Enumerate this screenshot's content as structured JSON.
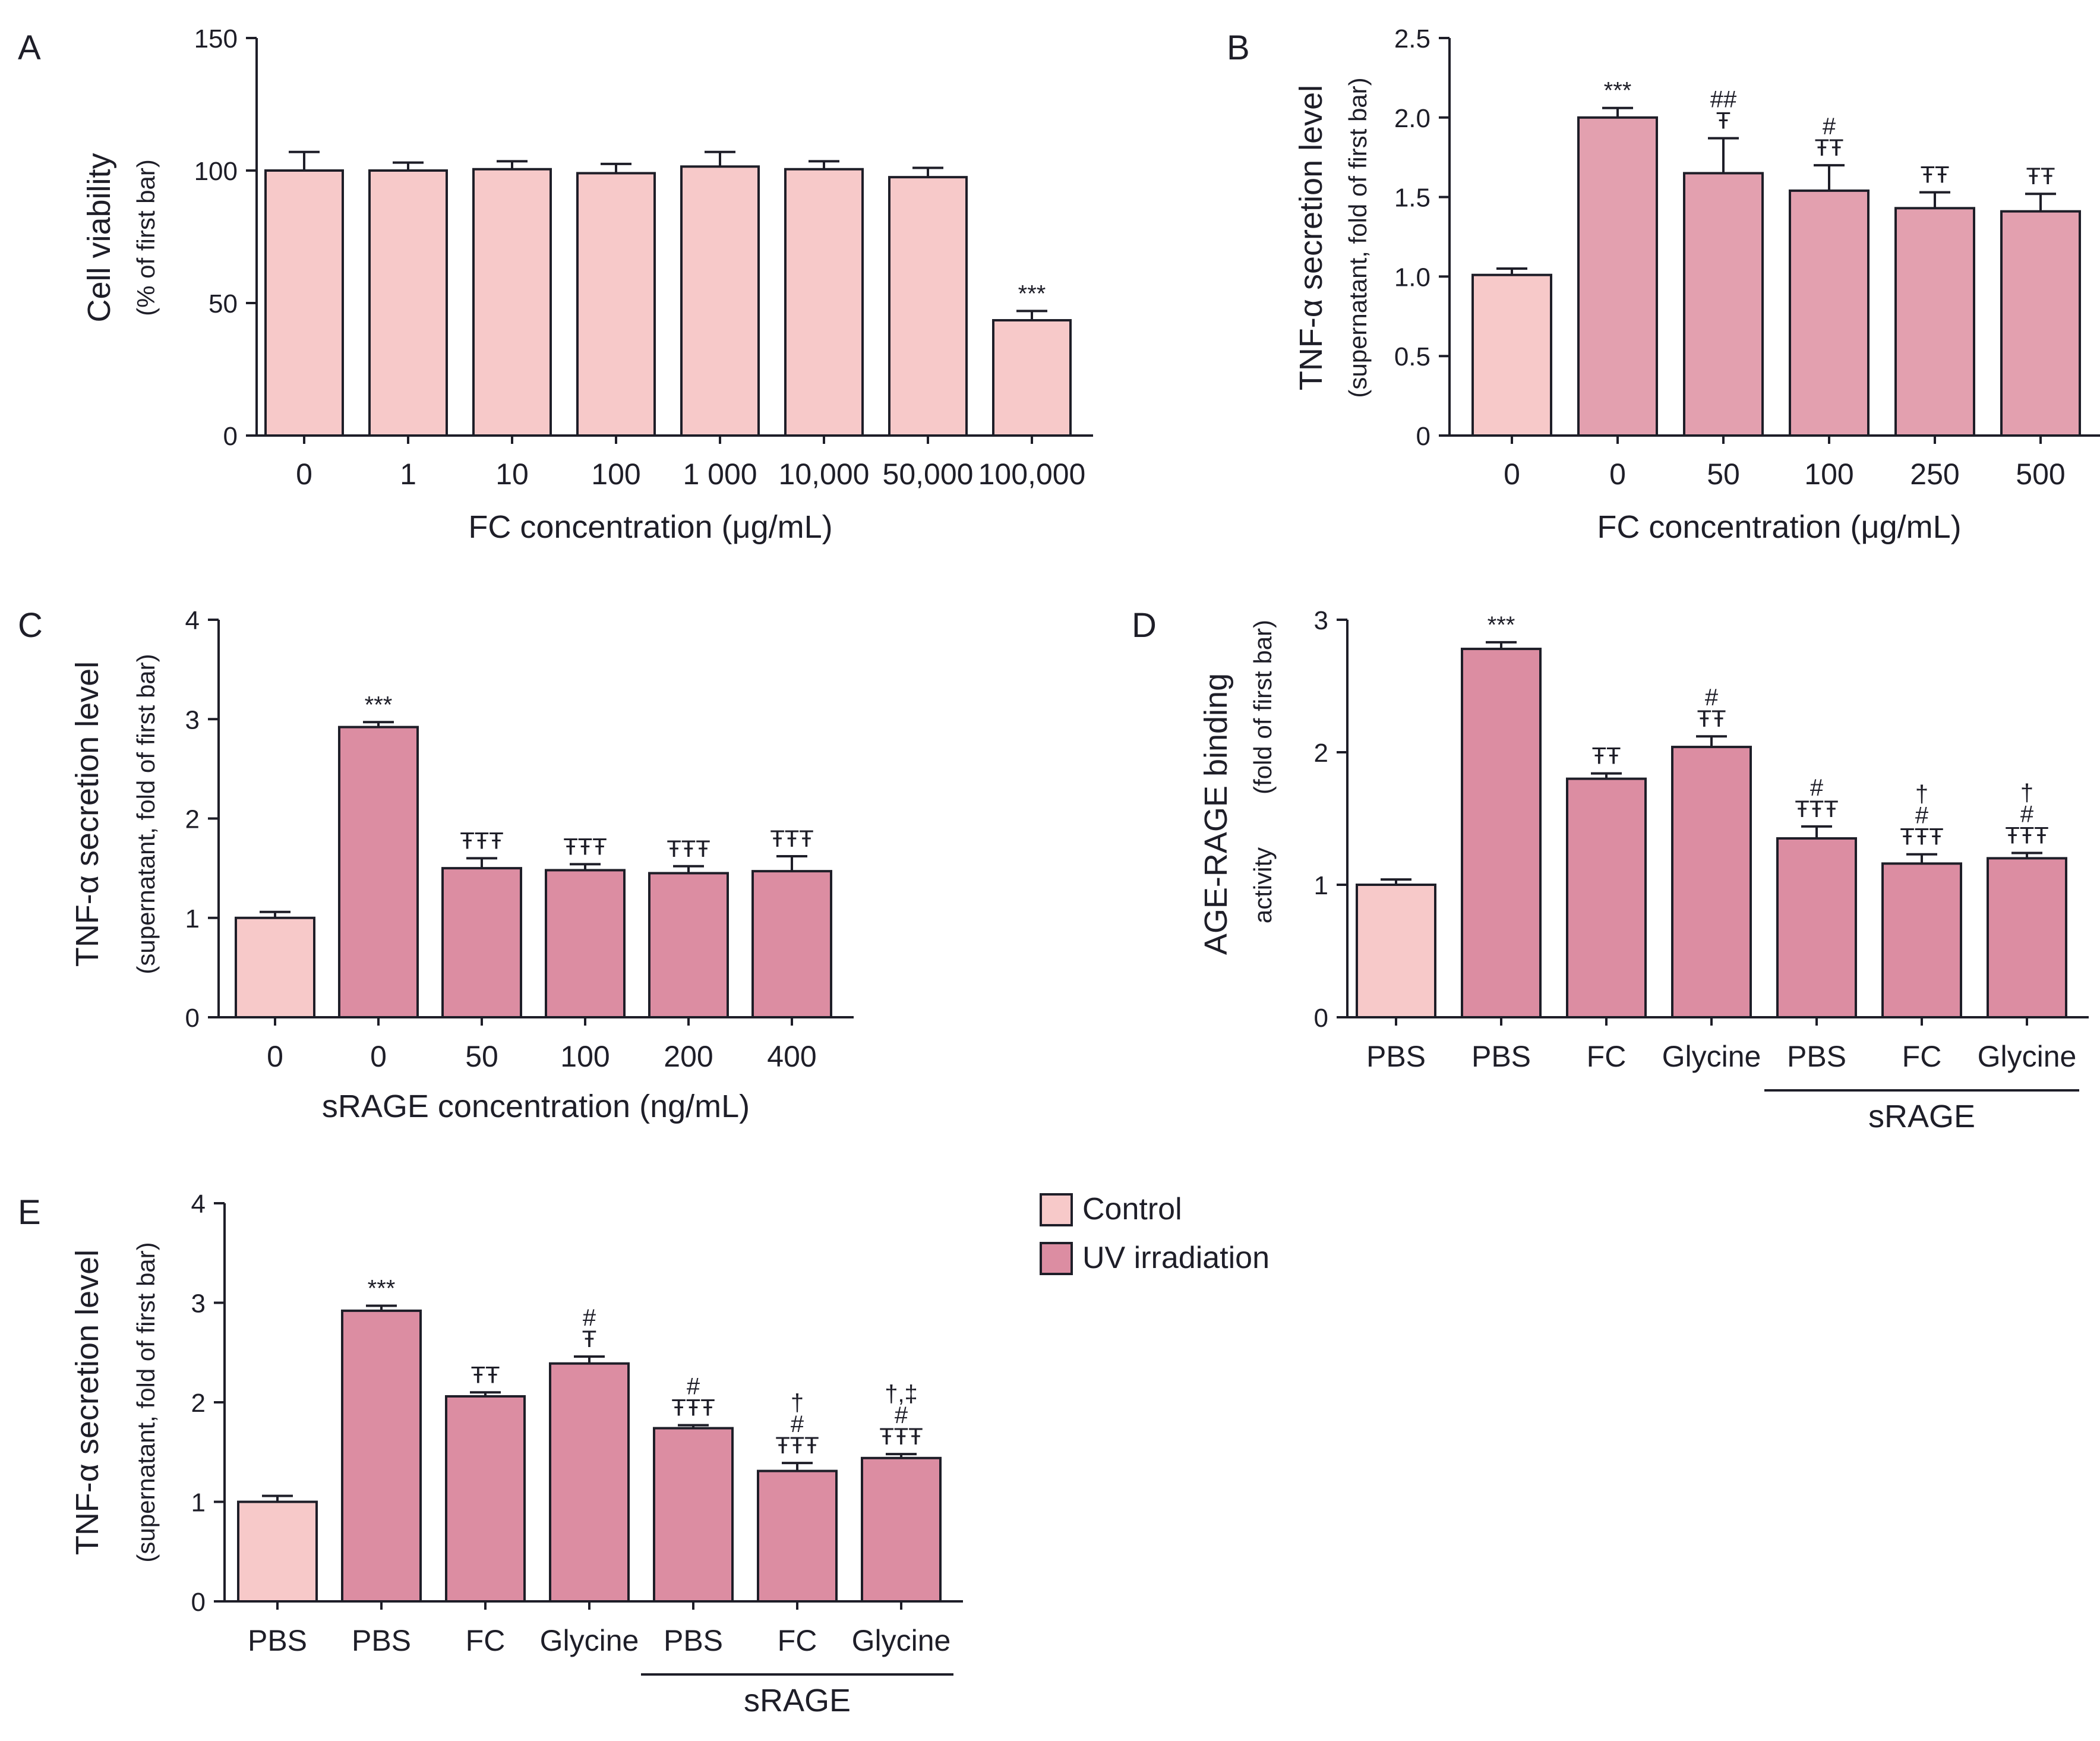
{
  "colors": {
    "control": "#F7C9C9",
    "uv": "#DC8DA2",
    "uv_b": "#E3A0AF",
    "stroke": "#1e1e28"
  },
  "legend": {
    "items": [
      {
        "label": "Control",
        "color": "#F7C9C9"
      },
      {
        "label": "UV irradiation",
        "color": "#DC8DA2"
      }
    ]
  },
  "chart_data": [
    {
      "panel": "A",
      "type": "bar",
      "ylabel": "Cell viability",
      "ylabel2": "(% of first bar)",
      "xlabel": "FC concentration (μg/mL)",
      "ylim": [
        0,
        150
      ],
      "ticks": [
        "0",
        "50",
        "100",
        "150"
      ],
      "categories": [
        "0",
        "1",
        "10",
        "100",
        "1 000",
        "10,000",
        "50,000",
        "100,000"
      ],
      "values": [
        100,
        100,
        100.5,
        99,
        101.5,
        100.5,
        97.5,
        43.5
      ],
      "errors": [
        7,
        3,
        3,
        3.5,
        5.5,
        3,
        3.5,
        3.5
      ],
      "groups": [
        "control",
        "control",
        "control",
        "control",
        "control",
        "control",
        "control",
        "control"
      ],
      "annotations": [
        "",
        "",
        "",
        "",
        "",
        "",
        "",
        "***"
      ],
      "bracket": null
    },
    {
      "panel": "B",
      "type": "bar",
      "ylabel": "TNF-α secretion level",
      "ylabel2": "(supernatant, fold of first bar)",
      "xlabel": "FC concentration (μg/mL)",
      "ylim": [
        0,
        2.5
      ],
      "ticks": [
        "0",
        "0.5",
        "1.0",
        "1.5",
        "2.0",
        "2.5"
      ],
      "categories": [
        "0",
        "0",
        "50",
        "100",
        "250",
        "500"
      ],
      "values": [
        1.01,
        2.0,
        1.65,
        1.54,
        1.43,
        1.41
      ],
      "errors": [
        0.04,
        0.06,
        0.22,
        0.16,
        0.1,
        0.11
      ],
      "groups": [
        "control",
        "uv_b",
        "uv_b",
        "uv_b",
        "uv_b",
        "uv_b"
      ],
      "annotations": [
        "",
        "***",
        "##\nŦ",
        "#\nŦŦ",
        "ŦŦ",
        "ŦŦ"
      ],
      "bracket": null
    },
    {
      "panel": "C",
      "type": "bar",
      "ylabel": "TNF-α secretion level",
      "ylabel2": "(supernatant, fold of first bar)",
      "xlabel": "sRAGE concentration (ng/mL)",
      "ylim": [
        0,
        4
      ],
      "ticks": [
        "0",
        "1",
        "2",
        "3",
        "4"
      ],
      "categories": [
        "0",
        "0",
        "50",
        "100",
        "200",
        "400"
      ],
      "values": [
        1.0,
        2.92,
        1.5,
        1.48,
        1.45,
        1.47
      ],
      "errors": [
        0.06,
        0.05,
        0.1,
        0.06,
        0.07,
        0.15
      ],
      "groups": [
        "control",
        "uv",
        "uv",
        "uv",
        "uv",
        "uv"
      ],
      "annotations": [
        "",
        "***",
        "ŦŦŦ",
        "ŦŦŦ",
        "ŦŦŦ",
        "ŦŦŦ"
      ],
      "bracket": null
    },
    {
      "panel": "D",
      "type": "bar",
      "ylabel": "AGE-RAGE binding",
      "ylabel2": "activity",
      "ylabel3": "(fold of first bar)",
      "xlabel": "",
      "ylim": [
        0,
        3
      ],
      "ticks": [
        "0",
        "1",
        "2",
        "3"
      ],
      "categories": [
        "PBS",
        "PBS",
        "FC",
        "Glycine",
        "PBS",
        "FC",
        "Glycine"
      ],
      "values": [
        1.0,
        2.78,
        1.8,
        2.04,
        1.35,
        1.16,
        1.2
      ],
      "errors": [
        0.04,
        0.05,
        0.04,
        0.08,
        0.09,
        0.07,
        0.04
      ],
      "groups": [
        "control",
        "uv",
        "uv",
        "uv",
        "uv",
        "uv",
        "uv"
      ],
      "annotations": [
        "",
        "***",
        "ŦŦ",
        "#\nŦŦ",
        "#\nŦŦŦ",
        "†\n#\nŦŦŦ",
        "†\n#\nŦŦŦ"
      ],
      "bracket": {
        "label": "sRAGE",
        "from": 4,
        "to": 6
      }
    },
    {
      "panel": "E",
      "type": "bar",
      "ylabel": "TNF-α secretion level",
      "ylabel2": "(supernatant, fold of first bar)",
      "xlabel": "",
      "ylim": [
        0,
        4
      ],
      "ticks": [
        "0",
        "1",
        "2",
        "3",
        "4"
      ],
      "categories": [
        "PBS",
        "PBS",
        "FC",
        "Glycine",
        "PBS",
        "FC",
        "Glycine"
      ],
      "values": [
        1.0,
        2.92,
        2.06,
        2.39,
        1.74,
        1.31,
        1.44
      ],
      "errors": [
        0.06,
        0.05,
        0.04,
        0.07,
        0.03,
        0.08,
        0.04
      ],
      "groups": [
        "control",
        "uv",
        "uv",
        "uv",
        "uv",
        "uv",
        "uv"
      ],
      "annotations": [
        "",
        "***",
        "ŦŦ",
        "#\nŦ",
        "#\nŦŦŦ",
        "†\n#\nŦŦŦ",
        "†,‡\n#\nŦŦŦ"
      ],
      "bracket": {
        "label": "sRAGE",
        "from": 4,
        "to": 6
      }
    }
  ]
}
